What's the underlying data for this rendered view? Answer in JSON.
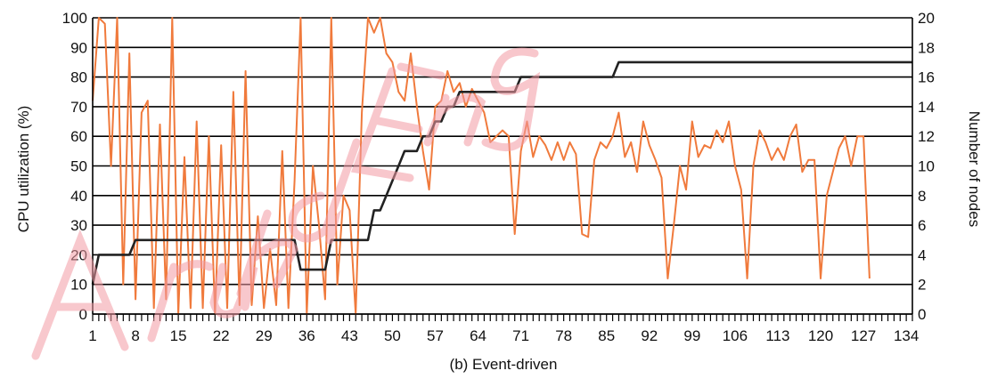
{
  "chart_data": {
    "type": "line",
    "caption": "(b) Event-driven",
    "xlabel": "",
    "ylabel_left": "CPU utilization (%)",
    "ylabel_right": "Number of nodes",
    "xlim": [
      1,
      135
    ],
    "ylim_left": [
      0,
      100
    ],
    "ylim_right": [
      0,
      20
    ],
    "x_ticks": [
      1,
      8,
      15,
      22,
      29,
      36,
      43,
      50,
      57,
      64,
      71,
      78,
      85,
      92,
      99,
      106,
      113,
      120,
      127,
      134
    ],
    "y_ticks_left": [
      0,
      10,
      20,
      30,
      40,
      50,
      60,
      70,
      80,
      90,
      100
    ],
    "y_ticks_right": [
      0,
      2,
      4,
      6,
      8,
      10,
      12,
      14,
      16,
      18,
      20
    ],
    "grid": "horizontal",
    "colors": {
      "cpu": "#f07a3c",
      "nodes": "#222222",
      "grid": "#000000"
    },
    "series": [
      {
        "axis": "left",
        "color": "#f07a3c",
        "points": [
          [
            1,
            72
          ],
          [
            2,
            100
          ],
          [
            3,
            98
          ],
          [
            4,
            50
          ],
          [
            5,
            100
          ],
          [
            6,
            10
          ],
          [
            7,
            88
          ],
          [
            8,
            5
          ],
          [
            9,
            68
          ],
          [
            10,
            72
          ],
          [
            11,
            2
          ],
          [
            12,
            64
          ],
          [
            13,
            5
          ],
          [
            14,
            100
          ],
          [
            15,
            0
          ],
          [
            16,
            53
          ],
          [
            17,
            2
          ],
          [
            18,
            65
          ],
          [
            19,
            2
          ],
          [
            20,
            60
          ],
          [
            21,
            0
          ],
          [
            22,
            57
          ],
          [
            23,
            2
          ],
          [
            24,
            75
          ],
          [
            25,
            3
          ],
          [
            26,
            82
          ],
          [
            27,
            3
          ],
          [
            28,
            33
          ],
          [
            29,
            2
          ],
          [
            30,
            22
          ],
          [
            31,
            3
          ],
          [
            32,
            55
          ],
          [
            33,
            2
          ],
          [
            34,
            45
          ],
          [
            35,
            100
          ],
          [
            36,
            0
          ],
          [
            37,
            50
          ],
          [
            38,
            30
          ],
          [
            39,
            5
          ],
          [
            40,
            100
          ],
          [
            41,
            10
          ],
          [
            42,
            40
          ],
          [
            43,
            35
          ],
          [
            44,
            0
          ],
          [
            45,
            68
          ],
          [
            46,
            100
          ],
          [
            47,
            95
          ],
          [
            48,
            100
          ],
          [
            49,
            88
          ],
          [
            50,
            85
          ],
          [
            51,
            75
          ],
          [
            52,
            72
          ],
          [
            53,
            88
          ],
          [
            54,
            70
          ],
          [
            55,
            55
          ],
          [
            56,
            42
          ],
          [
            57,
            70
          ],
          [
            58,
            72
          ],
          [
            59,
            82
          ],
          [
            60,
            75
          ],
          [
            61,
            78
          ],
          [
            62,
            70
          ],
          [
            63,
            76
          ],
          [
            64,
            72
          ],
          [
            65,
            68
          ],
          [
            66,
            58
          ],
          [
            67,
            60
          ],
          [
            68,
            62
          ],
          [
            69,
            60
          ],
          [
            70,
            27
          ],
          [
            71,
            55
          ],
          [
            72,
            65
          ],
          [
            73,
            53
          ],
          [
            74,
            60
          ],
          [
            75,
            57
          ],
          [
            76,
            52
          ],
          [
            77,
            58
          ],
          [
            78,
            52
          ],
          [
            79,
            58
          ],
          [
            80,
            54
          ],
          [
            81,
            27
          ],
          [
            82,
            26
          ],
          [
            83,
            52
          ],
          [
            84,
            58
          ],
          [
            85,
            56
          ],
          [
            86,
            60
          ],
          [
            87,
            68
          ],
          [
            88,
            53
          ],
          [
            89,
            58
          ],
          [
            90,
            48
          ],
          [
            91,
            65
          ],
          [
            92,
            57
          ],
          [
            93,
            52
          ],
          [
            94,
            46
          ],
          [
            95,
            12
          ],
          [
            96,
            30
          ],
          [
            97,
            50
          ],
          [
            98,
            42
          ],
          [
            99,
            65
          ],
          [
            100,
            53
          ],
          [
            101,
            57
          ],
          [
            102,
            56
          ],
          [
            103,
            62
          ],
          [
            104,
            58
          ],
          [
            105,
            65
          ],
          [
            106,
            50
          ],
          [
            107,
            42
          ],
          [
            108,
            12
          ],
          [
            109,
            50
          ],
          [
            110,
            62
          ],
          [
            111,
            58
          ],
          [
            112,
            52
          ],
          [
            113,
            56
          ],
          [
            114,
            52
          ],
          [
            115,
            60
          ],
          [
            116,
            64
          ],
          [
            117,
            48
          ],
          [
            118,
            52
          ],
          [
            119,
            52
          ],
          [
            120,
            12
          ],
          [
            121,
            40
          ],
          [
            122,
            48
          ],
          [
            123,
            56
          ],
          [
            124,
            60
          ],
          [
            125,
            50
          ],
          [
            126,
            60
          ],
          [
            127,
            60
          ],
          [
            128,
            12
          ]
        ]
      },
      {
        "axis": "right",
        "color": "#222222",
        "points": [
          [
            1,
            2
          ],
          [
            2,
            4
          ],
          [
            3,
            4
          ],
          [
            4,
            4
          ],
          [
            5,
            4
          ],
          [
            6,
            4
          ],
          [
            7,
            4
          ],
          [
            8,
            5
          ],
          [
            9,
            5
          ],
          [
            10,
            5
          ],
          [
            11,
            5
          ],
          [
            12,
            5
          ],
          [
            13,
            5
          ],
          [
            14,
            5
          ],
          [
            15,
            5
          ],
          [
            16,
            5
          ],
          [
            17,
            5
          ],
          [
            18,
            5
          ],
          [
            19,
            5
          ],
          [
            20,
            5
          ],
          [
            21,
            5
          ],
          [
            22,
            5
          ],
          [
            23,
            5
          ],
          [
            24,
            5
          ],
          [
            25,
            5
          ],
          [
            26,
            5
          ],
          [
            27,
            5
          ],
          [
            28,
            5
          ],
          [
            29,
            5
          ],
          [
            30,
            5
          ],
          [
            31,
            5
          ],
          [
            32,
            5
          ],
          [
            33,
            5
          ],
          [
            34,
            5
          ],
          [
            35,
            3
          ],
          [
            36,
            3
          ],
          [
            37,
            3
          ],
          [
            38,
            3
          ],
          [
            39,
            3
          ],
          [
            40,
            5
          ],
          [
            41,
            5
          ],
          [
            42,
            5
          ],
          [
            43,
            5
          ],
          [
            44,
            5
          ],
          [
            45,
            5
          ],
          [
            46,
            5
          ],
          [
            47,
            7
          ],
          [
            48,
            7
          ],
          [
            49,
            8
          ],
          [
            50,
            9
          ],
          [
            51,
            10
          ],
          [
            52,
            11
          ],
          [
            53,
            11
          ],
          [
            54,
            11
          ],
          [
            55,
            12
          ],
          [
            56,
            12
          ],
          [
            57,
            13
          ],
          [
            58,
            13
          ],
          [
            59,
            14
          ],
          [
            60,
            14
          ],
          [
            61,
            15
          ],
          [
            62,
            15
          ],
          [
            63,
            15
          ],
          [
            64,
            15
          ],
          [
            65,
            15
          ],
          [
            66,
            15
          ],
          [
            67,
            15
          ],
          [
            68,
            15
          ],
          [
            69,
            15
          ],
          [
            70,
            15
          ],
          [
            71,
            16
          ],
          [
            72,
            16
          ],
          [
            73,
            16
          ],
          [
            74,
            16
          ],
          [
            75,
            16
          ],
          [
            76,
            16
          ],
          [
            77,
            16
          ],
          [
            78,
            16
          ],
          [
            79,
            16
          ],
          [
            80,
            16
          ],
          [
            81,
            16
          ],
          [
            82,
            16
          ],
          [
            83,
            16
          ],
          [
            84,
            16
          ],
          [
            85,
            16
          ],
          [
            86,
            16
          ],
          [
            87,
            17
          ],
          [
            88,
            17
          ],
          [
            89,
            17
          ],
          [
            90,
            17
          ],
          [
            91,
            17
          ],
          [
            92,
            17
          ],
          [
            93,
            17
          ],
          [
            94,
            17
          ],
          [
            95,
            17
          ],
          [
            96,
            17
          ],
          [
            97,
            17
          ],
          [
            98,
            17
          ],
          [
            99,
            17
          ],
          [
            100,
            17
          ],
          [
            101,
            17
          ],
          [
            102,
            17
          ],
          [
            103,
            17
          ],
          [
            104,
            17
          ],
          [
            105,
            17
          ],
          [
            106,
            17
          ],
          [
            107,
            17
          ],
          [
            108,
            17
          ],
          [
            109,
            17
          ],
          [
            110,
            17
          ],
          [
            111,
            17
          ],
          [
            112,
            17
          ],
          [
            113,
            17
          ],
          [
            114,
            17
          ],
          [
            115,
            17
          ],
          [
            116,
            17
          ],
          [
            117,
            17
          ],
          [
            118,
            17
          ],
          [
            119,
            17
          ],
          [
            120,
            17
          ],
          [
            121,
            17
          ],
          [
            122,
            17
          ],
          [
            123,
            17
          ],
          [
            124,
            17
          ],
          [
            125,
            17
          ],
          [
            126,
            17
          ],
          [
            127,
            17
          ],
          [
            128,
            17
          ],
          [
            129,
            17
          ],
          [
            130,
            17
          ],
          [
            131,
            17
          ],
          [
            132,
            17
          ],
          [
            133,
            17
          ],
          [
            134,
            17
          ],
          [
            135,
            17
          ]
        ]
      }
    ]
  }
}
